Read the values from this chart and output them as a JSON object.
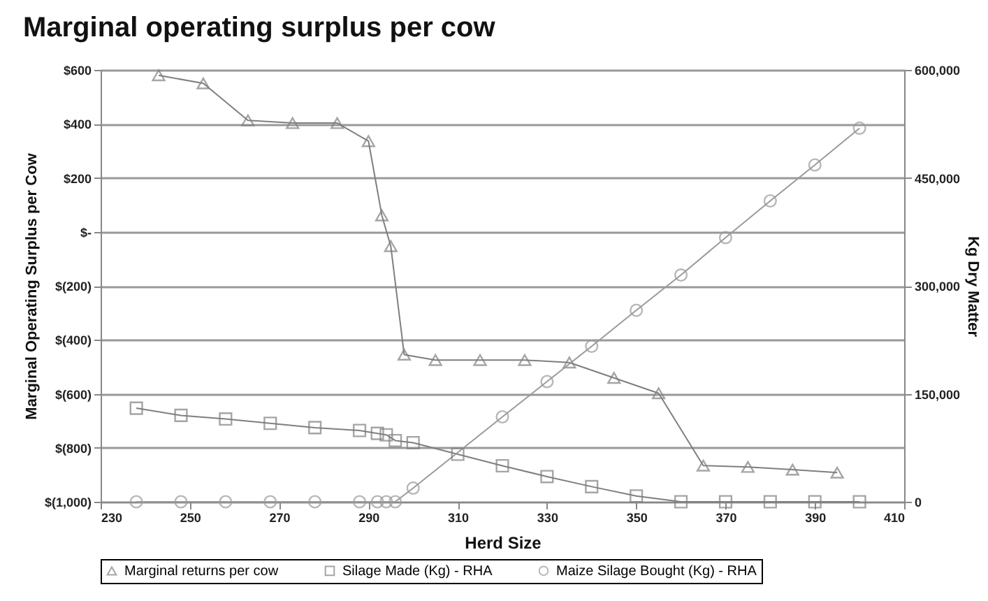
{
  "chart_data": {
    "type": "line",
    "title": "Marginal operating surplus per cow",
    "xlabel": "Herd Size",
    "ylabel": "Marginal Operating Surplus per Cow",
    "y2label": "Kg Dry Matter",
    "xlim": [
      230,
      410
    ],
    "xticks": [
      230,
      250,
      270,
      290,
      310,
      330,
      350,
      370,
      390,
      410
    ],
    "ylim": [
      -1000,
      600
    ],
    "yticks": [
      {
        "value": -1000,
        "label": "$(1,000)"
      },
      {
        "value": -800,
        "label": "$(800)"
      },
      {
        "value": -600,
        "label": "$(600)"
      },
      {
        "value": -400,
        "label": "$(400)"
      },
      {
        "value": -200,
        "label": "$(200)"
      },
      {
        "value": 0,
        "label": "$-"
      },
      {
        "value": 200,
        "label": "$200"
      },
      {
        "value": 400,
        "label": "$400"
      },
      {
        "value": 600,
        "label": "$600"
      }
    ],
    "y2lim": [
      0,
      600000
    ],
    "y2ticks": [
      0,
      {
        "value": 150000,
        "label": "150,000"
      },
      {
        "value": 300000,
        "label": "300,000"
      },
      {
        "value": 450000,
        "label": "450,000"
      },
      {
        "value": 600000,
        "label": "600,000"
      }
    ],
    "grid": "y",
    "legend": "bottom",
    "series": [
      {
        "name": "Marginal returns per cow",
        "color": "#7f7f7f",
        "marker": "triangle",
        "x": [
          243,
          253,
          263,
          273,
          283,
          290,
          293,
          295,
          298,
          305,
          315,
          325,
          335,
          345,
          355,
          365,
          375,
          385,
          395
        ],
        "values": [
          580,
          550,
          413,
          403,
          403,
          336,
          61,
          -53,
          -455,
          -475,
          -475,
          -475,
          -484,
          -541,
          -598,
          -866,
          -871,
          -881,
          -892
        ]
      },
      {
        "name": "Silage Made (Kg) - RHA",
        "color": "#7f7f7f",
        "marker": "square",
        "axis": "y2",
        "x": [
          238,
          248,
          258,
          268,
          278,
          288,
          292,
          294,
          296,
          300,
          310,
          320,
          330,
          340,
          350,
          360,
          370,
          380,
          390,
          400
        ],
        "values": [
          130000,
          120000,
          115000,
          109000,
          103000,
          99000,
          95000,
          93000,
          85000,
          82000,
          66000,
          50000,
          35000,
          21000,
          8000,
          0,
          0,
          0,
          0,
          0
        ]
      },
      {
        "name": "Maize Silage Bought (Kg) - RHA",
        "color": "#9a9a9a",
        "marker": "circle",
        "axis": "y2",
        "x": [
          238,
          248,
          258,
          268,
          278,
          288,
          292,
          294,
          296,
          300,
          320,
          330,
          340,
          350,
          360,
          370,
          380,
          390,
          400
        ],
        "values": [
          0,
          0,
          0,
          0,
          0,
          0,
          0,
          0,
          0,
          19000,
          118000,
          167000,
          216000,
          266000,
          315000,
          367000,
          418000,
          468000,
          519000
        ]
      }
    ]
  }
}
